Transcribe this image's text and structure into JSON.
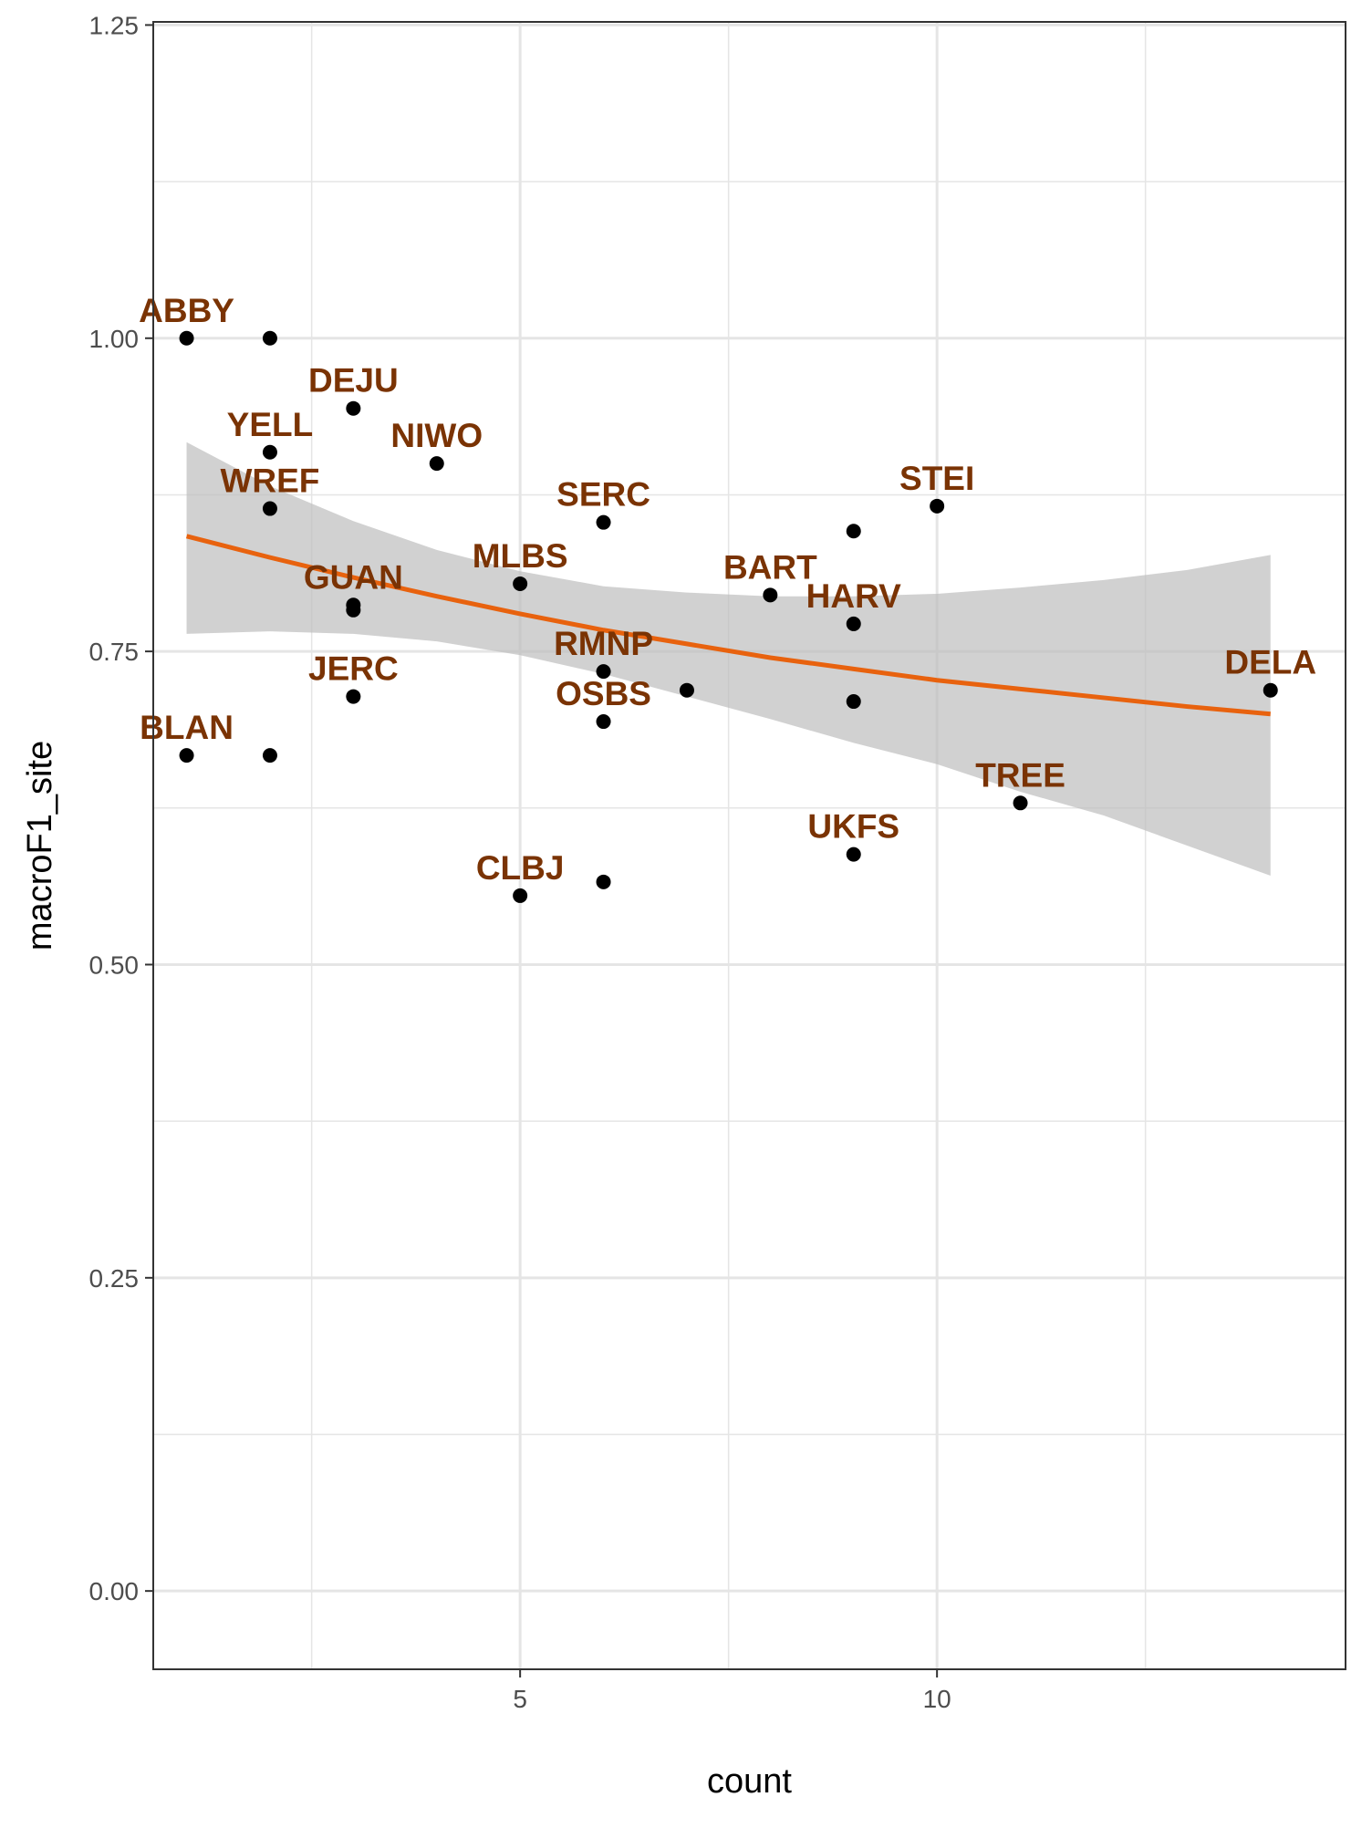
{
  "chart_data": {
    "type": "scatter",
    "xlabel": "count",
    "ylabel": "macroF1_site",
    "xlim": [
      0.6,
      14.9
    ],
    "ylim": [
      -0.0625,
      1.2525
    ],
    "x_ticks": [
      5,
      10
    ],
    "x_tick_labels": [
      "5",
      "10"
    ],
    "y_ticks": [
      0,
      0.25,
      0.5,
      0.75,
      1.0,
      1.25
    ],
    "y_tick_labels": [
      "0.00",
      "0.25",
      "0.50",
      "0.75",
      "1.00",
      "1.25"
    ],
    "grid": true,
    "colors": {
      "points": "#000000",
      "labels": "#7a3304",
      "smooth_line": "#e8620e",
      "confidence_band": "#bdbdbd",
      "grid": "#e5e5e5"
    },
    "points": [
      {
        "x": 1,
        "y": 1.0
      },
      {
        "x": 2,
        "y": 1.0
      },
      {
        "x": 3,
        "y": 0.944
      },
      {
        "x": 2,
        "y": 0.909
      },
      {
        "x": 4,
        "y": 0.9
      },
      {
        "x": 2,
        "y": 0.864
      },
      {
        "x": 6,
        "y": 0.853
      },
      {
        "x": 10,
        "y": 0.866
      },
      {
        "x": 9,
        "y": 0.846
      },
      {
        "x": 5,
        "y": 0.804
      },
      {
        "x": 8,
        "y": 0.795
      },
      {
        "x": 3,
        "y": 0.787
      },
      {
        "x": 3,
        "y": 0.783
      },
      {
        "x": 9,
        "y": 0.772
      },
      {
        "x": 6,
        "y": 0.734
      },
      {
        "x": 7,
        "y": 0.719
      },
      {
        "x": 14,
        "y": 0.719
      },
      {
        "x": 3,
        "y": 0.714
      },
      {
        "x": 9,
        "y": 0.71
      },
      {
        "x": 6,
        "y": 0.694
      },
      {
        "x": 1,
        "y": 0.667
      },
      {
        "x": 2,
        "y": 0.667
      },
      {
        "x": 11,
        "y": 0.629
      },
      {
        "x": 9,
        "y": 0.588
      },
      {
        "x": 6,
        "y": 0.566
      },
      {
        "x": 5,
        "y": 0.555
      }
    ],
    "labels": [
      {
        "text": "ABBY",
        "x": 1,
        "y": 1.0
      },
      {
        "text": "DEJU",
        "x": 3,
        "y": 0.944
      },
      {
        "text": "YELL",
        "x": 2,
        "y": 0.909
      },
      {
        "text": "NIWO",
        "x": 4,
        "y": 0.9
      },
      {
        "text": "WREF",
        "x": 2,
        "y": 0.864
      },
      {
        "text": "SERC",
        "x": 6,
        "y": 0.853
      },
      {
        "text": "STEI",
        "x": 10,
        "y": 0.866
      },
      {
        "text": "MLBS",
        "x": 5,
        "y": 0.804
      },
      {
        "text": "BART",
        "x": 8,
        "y": 0.795
      },
      {
        "text": "GUAN",
        "x": 3,
        "y": 0.787
      },
      {
        "text": "RMNP",
        "x": 6,
        "y": 0.734
      },
      {
        "text": "HARV",
        "x": 9,
        "y": 0.772
      },
      {
        "text": "DELA",
        "x": 14,
        "y": 0.719
      },
      {
        "text": "JERC",
        "x": 3,
        "y": 0.714
      },
      {
        "text": "OSBS",
        "x": 6,
        "y": 0.694
      },
      {
        "text": "BLAN",
        "x": 1,
        "y": 0.667
      },
      {
        "text": "TREE",
        "x": 11,
        "y": 0.629
      },
      {
        "text": "UKFS",
        "x": 9,
        "y": 0.588
      },
      {
        "text": "CLBJ",
        "x": 5,
        "y": 0.555
      }
    ],
    "smooth": {
      "x": [
        1,
        2,
        3,
        4,
        5,
        6,
        7,
        8,
        9,
        10,
        11,
        12,
        13,
        14
      ],
      "fit": [
        0.842,
        0.825,
        0.809,
        0.794,
        0.78,
        0.767,
        0.756,
        0.745,
        0.736,
        0.727,
        0.72,
        0.713,
        0.706,
        0.7
      ],
      "lower": [
        0.764,
        0.766,
        0.764,
        0.758,
        0.747,
        0.732,
        0.714,
        0.696,
        0.677,
        0.66,
        0.638,
        0.619,
        0.595,
        0.571
      ],
      "upper": [
        0.917,
        0.882,
        0.854,
        0.831,
        0.814,
        0.802,
        0.797,
        0.794,
        0.794,
        0.796,
        0.801,
        0.807,
        0.815,
        0.827
      ]
    }
  }
}
